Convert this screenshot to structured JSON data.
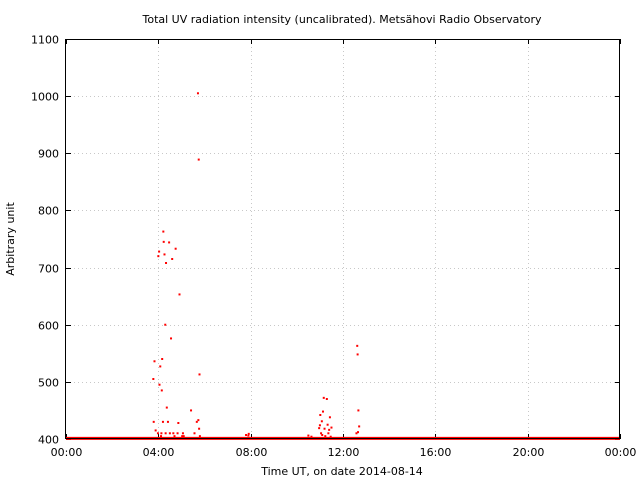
{
  "chart_data": {
    "type": "scatter",
    "title": "Total UV radiation intensity (uncalibrated). Metsähovi Radio Observatory",
    "xlabel": "Time UT, on date 2014-08-14",
    "ylabel": "Arbitrary unit",
    "xlim": [
      "00:00",
      "24:00"
    ],
    "ylim": [
      400,
      1100
    ],
    "x_ticks": [
      "00:00",
      "04:00",
      "08:00",
      "12:00",
      "16:00",
      "20:00",
      "00:00"
    ],
    "y_ticks": [
      400,
      500,
      600,
      700,
      800,
      900,
      1000,
      1100
    ],
    "grid": true,
    "baseline": {
      "value": 401,
      "from": "00:00",
      "to": "24:00"
    },
    "series": [
      {
        "color": "#ff0000",
        "x": [
          "03:47",
          "03:48",
          "03:50",
          "03:53",
          "03:59",
          "04:00",
          "04:02",
          "04:03",
          "04:05",
          "04:07",
          "04:08",
          "04:09",
          "04:10",
          "04:12",
          "04:13",
          "04:14",
          "04:16",
          "04:18",
          "04:19",
          "04:20",
          "04:22",
          "04:25",
          "04:28",
          "04:30",
          "04:33",
          "04:36",
          "04:39",
          "04:42",
          "04:45",
          "04:50",
          "04:52",
          "04:55",
          "05:02",
          "05:04",
          "05:06",
          "05:25",
          "05:34",
          "05:40",
          "05:43",
          "05:44",
          "05:45",
          "05:46",
          "05:47",
          "05:48",
          "07:48",
          "07:54",
          "07:55",
          "10:30",
          "10:38",
          "10:58",
          "11:00",
          "11:01",
          "11:03",
          "11:05",
          "11:06",
          "11:08",
          "11:10",
          "11:12",
          "11:14",
          "11:18",
          "11:20",
          "11:22",
          "11:24",
          "11:26",
          "11:28",
          "11:30",
          "12:35",
          "12:37",
          "12:38",
          "12:39",
          "12:40",
          "12:42"
        ],
        "y": [
          505,
          430,
          536,
          415,
          410,
          720,
          728,
          495,
          527,
          405,
          410,
          485,
          540,
          430,
          763,
          745,
          723,
          600,
          410,
          708,
          455,
          430,
          744,
          410,
          576,
          715,
          410,
          405,
          733,
          410,
          428,
          653,
          405,
          410,
          405,
          450,
          410,
          430,
          1005,
          433,
          889,
          418,
          513,
          405,
          407,
          406,
          409,
          406,
          404,
          419,
          424,
          442,
          410,
          431,
          407,
          448,
          472,
          418,
          405,
          470,
          425,
          410,
          416,
          438,
          404,
          420,
          410,
          563,
          548,
          412,
          450,
          422
        ]
      }
    ]
  }
}
